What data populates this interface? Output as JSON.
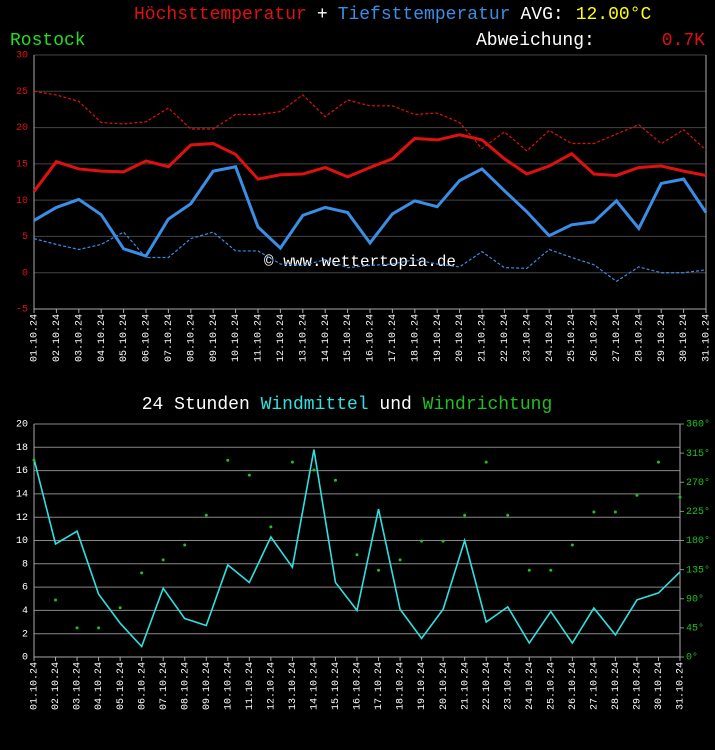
{
  "header": {
    "max_label": "Höchsttemperatur",
    "plus": "+",
    "min_label": "Tiefsttemperatur",
    "avg_label": "AVG:",
    "avg_value": "12.00°C",
    "location": "Rostock",
    "deviation_label": "Abweichung:",
    "deviation": "0.7K"
  },
  "chart_data": [
    {
      "type": "line",
      "watermark": "© www.wettertopia.de",
      "categories": [
        "01.10.24",
        "02.10.24",
        "03.10.24",
        "04.10.24",
        "05.10.24",
        "06.10.24",
        "07.10.24",
        "08.10.24",
        "09.10.24",
        "10.10.24",
        "11.10.24",
        "12.10.24",
        "13.10.24",
        "14.10.24",
        "15.10.24",
        "16.10.24",
        "17.10.24",
        "18.10.24",
        "19.10.24",
        "20.10.24",
        "21.10.24",
        "22.10.24",
        "23.10.24",
        "24.10.24",
        "25.10.24",
        "26.10.24",
        "27.10.24",
        "28.10.24",
        "29.10.24",
        "30.10.24",
        "31.10.24"
      ],
      "ylim": [
        -5,
        30
      ],
      "yticks": [
        -5,
        0,
        5,
        10,
        15,
        20,
        25,
        30
      ],
      "grid": true,
      "series": [
        {
          "color": "#e01010",
          "dashed": true,
          "values": [
            25,
            24.5,
            23.6,
            20.7,
            20.5,
            20.8,
            22.7,
            19.8,
            19.8,
            21.8,
            21.8,
            22.2,
            24.5,
            21.5,
            23.8,
            23,
            23,
            21.8,
            22,
            20.7,
            17.1,
            19.4,
            16.8,
            19.6,
            17.8,
            17.8,
            19.1,
            20.4,
            17.8,
            19.7,
            16.9
          ]
        },
        {
          "color": "#3a8ee6",
          "dashed": true,
          "values": [
            4.7,
            3.9,
            3.2,
            3.9,
            5.6,
            2.1,
            2.1,
            4.7,
            5.6,
            3,
            3,
            1.2,
            1,
            1.8,
            0.7,
            1,
            1.2,
            1.8,
            1.2,
            0.8,
            2.9,
            0.7,
            0.6,
            3.2,
            2.1,
            1.1,
            -1.2,
            0.8,
            0,
            0,
            0.4
          ]
        },
        {
          "color": "#e01010",
          "dashed": false,
          "values": [
            11.2,
            15.3,
            14.3,
            14,
            13.9,
            15.4,
            14.6,
            17.6,
            17.8,
            16.3,
            12.9,
            13.5,
            13.6,
            14.5,
            13.2,
            14.5,
            15.7,
            18.5,
            18.3,
            19,
            18.3,
            15.7,
            13.6,
            14.7,
            16.4,
            13.6,
            13.4,
            14.5,
            14.7,
            14,
            13.4
          ]
        },
        {
          "color": "#3a8ee6",
          "dashed": false,
          "values": [
            7.2,
            9,
            10.1,
            8,
            3.3,
            2.3,
            7.4,
            9.5,
            14,
            14.6,
            6.3,
            3.4,
            7.9,
            9,
            8.3,
            4.1,
            8.1,
            9.9,
            9.1,
            12.7,
            14.3,
            11.3,
            8.4,
            5.1,
            6.6,
            7,
            9.9,
            6.1,
            12.3,
            12.9,
            8.3
          ]
        }
      ]
    },
    {
      "type": "line",
      "title_prefix": "24 Stunden",
      "title_joiner": "und",
      "categories": [
        "01.10.24",
        "02.10.24",
        "03.10.24",
        "04.10.24",
        "05.10.24",
        "06.10.24",
        "07.10.24",
        "08.10.24",
        "09.10.24",
        "10.10.24",
        "11.10.24",
        "12.10.24",
        "13.10.24",
        "14.10.24",
        "15.10.24",
        "16.10.24",
        "17.10.24",
        "18.10.24",
        "19.10.24",
        "20.10.24",
        "21.10.24",
        "22.10.24",
        "23.10.24",
        "24.10.24",
        "25.10.24",
        "26.10.24",
        "27.10.24",
        "28.10.24",
        "29.10.24",
        "30.10.24",
        "31.10.24"
      ],
      "ylim": [
        0,
        20
      ],
      "yticks": [
        0,
        2,
        4,
        6,
        8,
        10,
        12,
        14,
        16,
        18,
        20
      ],
      "grid": true,
      "y2lim": [
        0,
        360
      ],
      "y2ticks": [
        {
          "value": 0,
          "label": "0°"
        },
        {
          "value": 45,
          "label": "45°"
        },
        {
          "value": 90,
          "label": "90°"
        },
        {
          "value": 135,
          "label": "135°"
        },
        {
          "value": 180,
          "label": "180°"
        },
        {
          "value": 225,
          "label": "225°"
        },
        {
          "value": 270,
          "label": "270°"
        },
        {
          "value": 315,
          "label": "315°"
        },
        {
          "value": 360,
          "label": "360°"
        }
      ],
      "series": [
        {
          "name": "Windmittel",
          "color": "#30e0e0",
          "values": [
            17,
            9.7,
            10.8,
            5.4,
            2.9,
            0.9,
            5.9,
            3.3,
            2.7,
            7.9,
            6.4,
            10.3,
            7.7,
            17.8,
            6.4,
            4,
            12.7,
            4.1,
            1.6,
            4.1,
            10,
            3,
            4.3,
            1.2,
            3.9,
            1.2,
            4.2,
            1.9,
            4.9,
            5.5,
            7.3
          ]
        },
        {
          "name": "Windrichtung",
          "color": "#20c020",
          "axis": "y2",
          "dots": true,
          "values": [
            304,
            88,
            45,
            45,
            76,
            130,
            150,
            173,
            219,
            304,
            281,
            201,
            301,
            289,
            273,
            158,
            134,
            150,
            179,
            179,
            219,
            301,
            219,
            134,
            134,
            173,
            224,
            224,
            250,
            301,
            247
          ]
        }
      ]
    }
  ]
}
